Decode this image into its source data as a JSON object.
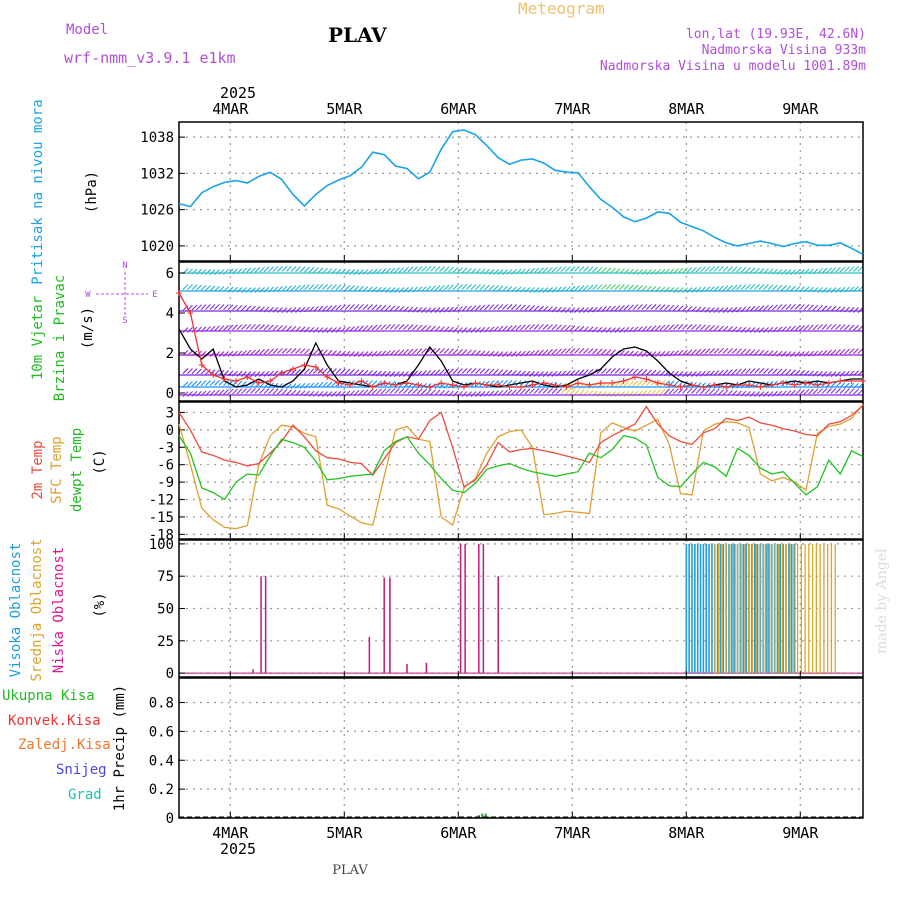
{
  "header": {
    "model_label": "Model",
    "model_name": "wrf-nmm_v3.9.1 e1km",
    "station": "PLAV",
    "title": "Meteogram",
    "lonlat": "lon,lat (19.93E, 42.6N)",
    "elevation": "Nadmorska Visina 933m",
    "model_elevation": "Nadmorska Visina u modelu 1001.89m",
    "year": "2025",
    "footer_station": "PLAV",
    "watermark": "made by Angel"
  },
  "colors": {
    "pressure": "#1aa3e8",
    "temp2m": "#ef4b3c",
    "sfc": "#e0a030",
    "dewpt": "#1fc41f",
    "cloud_high": "#1e9ee0",
    "cloud_mid": "#d9a62a",
    "cloud_low": "#c2187e",
    "wind_black": "#000000",
    "wind_red": "#ee3333",
    "label_green": "#22bb22",
    "label_pink": "#e0168c",
    "label_violet": "#b04fd8"
  },
  "axis": {
    "x_days": [
      "4MAR",
      "5MAR",
      "6MAR",
      "7MAR",
      "8MAR",
      "9MAR"
    ],
    "x_range_days": [
      -0.45,
      5.55
    ]
  },
  "panels": {
    "pressure": {
      "label": "Pritisak na nivou mora",
      "unit": "(hPa)",
      "yticks": [
        "1038",
        "1032",
        "1026",
        "1020"
      ]
    },
    "wind": {
      "label1": "10m Vjetar",
      "label2": "Brzina i Pravac",
      "unit": "(m/s)",
      "yticks": [
        "6",
        "4",
        "2",
        "0"
      ],
      "compass": {
        "n": "N",
        "w": "W",
        "e": "E",
        "s": "S"
      }
    },
    "temp": {
      "label1": "2m Temp",
      "label2": "SFC Temp",
      "label3": "dewpt Temp",
      "unit": "(C)",
      "yticks": [
        "3",
        "0",
        "-3",
        "-6",
        "-9",
        "-12",
        "-15",
        "-18"
      ]
    },
    "cloud": {
      "label1": "Visoka Oblacnost",
      "label2": "Srednja Oblacnost",
      "label3": "Niska Oblacnost",
      "unit": "(%)",
      "yticks": [
        "100",
        "75",
        "50",
        "25",
        "0"
      ]
    },
    "precip": {
      "unit": "1hr Precip (mm)",
      "yticks": [
        "0.8",
        "0.6",
        "0.4",
        "0.2",
        "0"
      ],
      "legend": [
        "Ukupna Kisa",
        "Konvek.Kisa",
        "Zaledj.Kisa",
        "Snijeg",
        "Grad"
      ]
    }
  },
  "chart_data": [
    {
      "type": "line",
      "name": "pressure",
      "ylim": [
        1017.5,
        1040.5
      ],
      "x": [
        -0.45,
        -0.35,
        -0.25,
        -0.15,
        -0.05,
        0.05,
        0.15,
        0.25,
        0.35,
        0.45,
        0.55,
        0.65,
        0.75,
        0.85,
        0.95,
        1.05,
        1.15,
        1.25,
        1.35,
        1.45,
        1.55,
        1.65,
        1.75,
        1.85,
        1.95,
        2.05,
        2.15,
        2.25,
        2.35,
        2.45,
        2.55,
        2.65,
        2.75,
        2.85,
        2.95,
        3.05,
        3.15,
        3.25,
        3.35,
        3.45,
        3.55,
        3.65,
        3.75,
        3.85,
        3.95,
        4.05,
        4.15,
        4.25,
        4.35,
        4.45,
        4.55,
        4.65,
        4.75,
        4.85,
        4.95,
        5.05,
        5.15,
        5.25,
        5.35,
        5.45,
        5.55
      ],
      "values": [
        1027,
        1026.5,
        1028.8,
        1029.8,
        1030.5,
        1030.8,
        1030.4,
        1031.5,
        1032.2,
        1031,
        1028.5,
        1026.6,
        1028.5,
        1030,
        1030.9,
        1031.6,
        1033,
        1035.5,
        1035.1,
        1033.2,
        1032.8,
        1031.1,
        1032.2,
        1036,
        1038.9,
        1039.2,
        1038.4,
        1036.6,
        1034.6,
        1033.5,
        1034.2,
        1034.4,
        1033.7,
        1032.5,
        1032.2,
        1032.1,
        1029.8,
        1027.7,
        1026.4,
        1024.8,
        1024,
        1024.6,
        1025.6,
        1025.4,
        1023.9,
        1023.2,
        1022.5,
        1021.4,
        1020.5,
        1020,
        1020.4,
        1020.8,
        1020.4,
        1019.9,
        1020.4,
        1020.7,
        1020.1,
        1020.1,
        1020.5,
        1019.6,
        1018.6
      ]
    },
    {
      "type": "line",
      "name": "wind",
      "ylim": [
        -0.4,
        6.55
      ],
      "series": [
        {
          "x": [
            -0.45,
            -0.35,
            -0.25,
            -0.15,
            -0.05,
            0.05,
            0.15,
            0.25,
            0.35,
            0.45,
            0.55,
            0.65,
            0.75,
            0.85,
            0.95,
            1.05,
            1.15,
            1.25,
            1.35,
            1.45,
            1.55,
            1.65,
            1.75,
            1.85,
            1.95,
            2.05,
            2.15,
            2.25,
            2.35,
            2.45,
            2.55,
            2.65,
            2.75,
            2.85,
            2.95,
            3.05,
            3.15,
            3.25,
            3.35,
            3.45,
            3.55,
            3.65,
            3.75,
            3.85,
            3.95,
            4.05,
            4.15,
            4.25,
            4.35,
            4.45,
            4.55,
            4.65,
            4.75,
            4.85,
            4.95,
            5.05,
            5.15,
            5.25,
            5.35,
            5.45,
            5.55
          ],
          "values": [
            3.2,
            2.2,
            1.7,
            2.2,
            0.6,
            0.3,
            0.4,
            0.7,
            0.4,
            0.3,
            0.6,
            1.2,
            2.5,
            1.4,
            0.6,
            0.5,
            0.4,
            0.3,
            0.5,
            0.4,
            0.6,
            1.4,
            2.3,
            1.6,
            0.6,
            0.4,
            0.5,
            0.4,
            0.3,
            0.4,
            0.5,
            0.6,
            0.4,
            0.3,
            0.4,
            0.7,
            0.9,
            1.2,
            1.8,
            2.2,
            2.3,
            2.1,
            1.6,
            1.0,
            0.6,
            0.4,
            0.3,
            0.4,
            0.5,
            0.4,
            0.6,
            0.5,
            0.4,
            0.5,
            0.6,
            0.5,
            0.6,
            0.5,
            0.6,
            0.7,
            0.7
          ]
        },
        {
          "x": [
            -0.45,
            -0.35,
            -0.25,
            -0.15,
            -0.05,
            0.05,
            0.15,
            0.25,
            0.35,
            0.45,
            0.55,
            0.65,
            0.75,
            0.85,
            0.95,
            1.05,
            1.15,
            1.25,
            1.35,
            1.45,
            1.55,
            1.65,
            1.75,
            1.85,
            1.95,
            2.05,
            2.15,
            2.25,
            2.35,
            2.45,
            2.55,
            2.65,
            2.75,
            2.85,
            2.95,
            3.05,
            3.15,
            3.25,
            3.35,
            3.45,
            3.55,
            3.65,
            3.75,
            3.85,
            3.95,
            4.05,
            4.15,
            4.25,
            4.35,
            4.45,
            4.55,
            4.65,
            4.75,
            4.85,
            4.95,
            5.05,
            5.15,
            5.25,
            5.35,
            5.45,
            5.55
          ],
          "values": [
            5.0,
            4.0,
            1.4,
            0.9,
            0.7,
            0.6,
            0.8,
            0.5,
            0.6,
            1.0,
            1.2,
            1.4,
            1.3,
            0.8,
            0.5,
            0.4,
            0.6,
            0.3,
            0.5,
            0.4,
            0.5,
            0.4,
            0.3,
            0.5,
            0.4,
            0.3,
            0.5,
            0.4,
            0.4,
            0.3,
            0.3,
            0.4,
            0.5,
            0.4,
            0.3,
            0.5,
            0.4,
            0.5,
            0.5,
            0.6,
            0.8,
            0.7,
            0.5,
            0.4,
            0.3,
            0.4,
            0.3,
            0.4,
            0.3,
            0.4,
            0.4,
            0.3,
            0.4,
            0.5,
            0.4,
            0.5,
            0.4,
            0.5,
            0.6,
            0.6,
            0.6
          ]
        }
      ]
    },
    {
      "type": "line",
      "name": "temperature",
      "ylim": [
        -18.8,
        4.8
      ],
      "series": [
        {
          "x": [
            -0.45,
            -0.35,
            -0.25,
            -0.15,
            -0.05,
            0.05,
            0.15,
            0.25,
            0.35,
            0.45,
            0.55,
            0.65,
            0.75,
            0.85,
            0.95,
            1.05,
            1.15,
            1.25,
            1.35,
            1.45,
            1.55,
            1.65,
            1.75,
            1.85,
            1.95,
            2.05,
            2.15,
            2.25,
            2.35,
            2.45,
            2.55,
            2.65,
            2.75,
            2.85,
            2.95,
            3.05,
            3.15,
            3.25,
            3.35,
            3.45,
            3.55,
            3.65,
            3.75,
            3.85,
            3.95,
            4.05,
            4.15,
            4.25,
            4.35,
            4.45,
            4.55,
            4.65,
            4.75,
            4.85,
            4.95,
            5.05,
            5.15,
            5.25,
            5.35,
            5.45,
            5.55
          ],
          "values": [
            3.0,
            0.0,
            -3.8,
            -4.4,
            -5.2,
            -5.6,
            -6.2,
            -5.8,
            -4.0,
            -2.0,
            0.8,
            -1.2,
            -3.6,
            -4.8,
            -5.0,
            -5.6,
            -5.8,
            -7.8,
            -5.0,
            -2.2,
            -1.2,
            -1.6,
            1.6,
            3.0,
            -3.0,
            -9.8,
            -8.6,
            -6.0,
            -2.2,
            -3.8,
            -3.4,
            -3.2,
            -3.6,
            -4.0,
            -4.5,
            -5.0,
            -5.6,
            -2.2,
            -1.0,
            0.0,
            1.0,
            4.0,
            1.0,
            -1.0,
            -2.0,
            -2.5,
            -0.5,
            0.2,
            2.0,
            1.6,
            2.2,
            1.2,
            0.8,
            0.2,
            -0.2,
            -0.8,
            -1.0,
            1.0,
            1.4,
            2.5,
            4.2
          ]
        },
        {
          "x": [
            -0.45,
            -0.35,
            -0.25,
            -0.15,
            -0.05,
            0.05,
            0.15,
            0.25,
            0.35,
            0.45,
            0.55,
            0.65,
            0.75,
            0.85,
            0.95,
            1.05,
            1.15,
            1.25,
            1.35,
            1.45,
            1.55,
            1.65,
            1.75,
            1.85,
            1.95,
            2.05,
            2.15,
            2.25,
            2.35,
            2.45,
            2.55,
            2.65,
            2.75,
            2.85,
            2.95,
            3.05,
            3.15,
            3.25,
            3.35,
            3.45,
            3.55,
            3.65,
            3.75,
            3.85,
            3.95,
            4.05,
            4.15,
            4.25,
            4.35,
            4.45,
            4.55,
            4.65,
            4.75,
            4.85,
            4.95,
            5.05,
            5.15,
            5.25,
            5.35,
            5.45,
            5.55
          ],
          "values": [
            1.0,
            -6.0,
            -13.5,
            -15.5,
            -16.8,
            -17.0,
            -16.5,
            -6.0,
            -1.0,
            0.8,
            0.5,
            -0.6,
            -1.2,
            -13.0,
            -13.6,
            -14.8,
            -16.0,
            -16.4,
            -8.0,
            0.0,
            0.6,
            -1.6,
            -2.0,
            -15.0,
            -16.4,
            -10.0,
            -8.4,
            -4.0,
            -1.2,
            -0.3,
            0.0,
            -3.0,
            -14.6,
            -14.4,
            -14.0,
            -14.2,
            -14.4,
            -0.5,
            1.2,
            0.4,
            -0.2,
            0.8,
            1.8,
            -2.5,
            -11.0,
            -11.2,
            -0.2,
            1.0,
            1.4,
            1.2,
            0.4,
            -7.6,
            -8.8,
            -8.2,
            -9.0,
            -10.4,
            -0.6,
            0.6,
            1.0,
            2.0,
            4.4
          ]
        },
        {
          "x": [
            -0.45,
            -0.35,
            -0.25,
            -0.15,
            -0.05,
            0.05,
            0.15,
            0.25,
            0.35,
            0.45,
            0.55,
            0.65,
            0.75,
            0.85,
            0.95,
            1.05,
            1.15,
            1.25,
            1.35,
            1.45,
            1.55,
            1.65,
            1.75,
            1.85,
            1.95,
            2.05,
            2.15,
            2.25,
            2.35,
            2.45,
            2.55,
            2.65,
            2.75,
            2.85,
            2.95,
            3.05,
            3.15,
            3.25,
            3.35,
            3.45,
            3.55,
            3.65,
            3.75,
            3.85,
            3.95,
            4.05,
            4.15,
            4.25,
            4.35,
            4.45,
            4.55,
            4.65,
            4.75,
            4.85,
            4.95,
            5.05,
            5.15,
            5.25,
            5.35,
            5.45,
            5.55
          ],
          "values": [
            -1.0,
            -4.0,
            -10.0,
            -10.8,
            -12.0,
            -9.0,
            -7.6,
            -7.8,
            -4.5,
            -1.6,
            -2.2,
            -3.0,
            -5.4,
            -8.6,
            -8.4,
            -8.0,
            -7.8,
            -7.6,
            -3.6,
            -2.0,
            -1.2,
            -4.0,
            -6.0,
            -8.4,
            -10.4,
            -10.8,
            -9.2,
            -6.8,
            -6.2,
            -5.8,
            -6.6,
            -7.2,
            -7.6,
            -8.0,
            -7.6,
            -7.2,
            -4.0,
            -4.8,
            -3.4,
            -1.0,
            -1.4,
            -2.6,
            -8.2,
            -9.6,
            -9.8,
            -7.6,
            -5.6,
            -6.4,
            -8.0,
            -3.2,
            -4.4,
            -6.6,
            -7.6,
            -7.2,
            -9.2,
            -11.2,
            -9.8,
            -5.2,
            -7.6,
            -3.6,
            -4.6
          ]
        }
      ]
    },
    {
      "type": "bar",
      "name": "cloud cover",
      "ylim": [
        -3,
        103
      ],
      "series": [
        {
          "name": "low",
          "x": [
            0.2,
            0.27,
            0.31,
            1.22,
            1.35,
            1.4,
            1.55,
            1.72,
            2.02,
            2.06,
            2.18,
            2.22,
            2.35
          ],
          "values": [
            3,
            75,
            75,
            28,
            74,
            74,
            7,
            8,
            100,
            100,
            100,
            100,
            75
          ]
        },
        {
          "name": "high",
          "x_start": 4.0,
          "x_end": 4.95,
          "step": 0.025,
          "value": 100
        },
        {
          "name": "mid",
          "x_start": 4.25,
          "x_end": 5.32,
          "step": 0.033,
          "value": 100
        }
      ]
    },
    {
      "type": "bar",
      "name": "precipitation",
      "ylim": [
        0,
        0.97
      ],
      "series": [
        {
          "name": "Ukupna Kisa",
          "x": [
            2.18,
            2.21,
            2.24,
            2.27
          ],
          "values": [
            0.02,
            0.03,
            0.03,
            0.01
          ]
        }
      ]
    }
  ]
}
